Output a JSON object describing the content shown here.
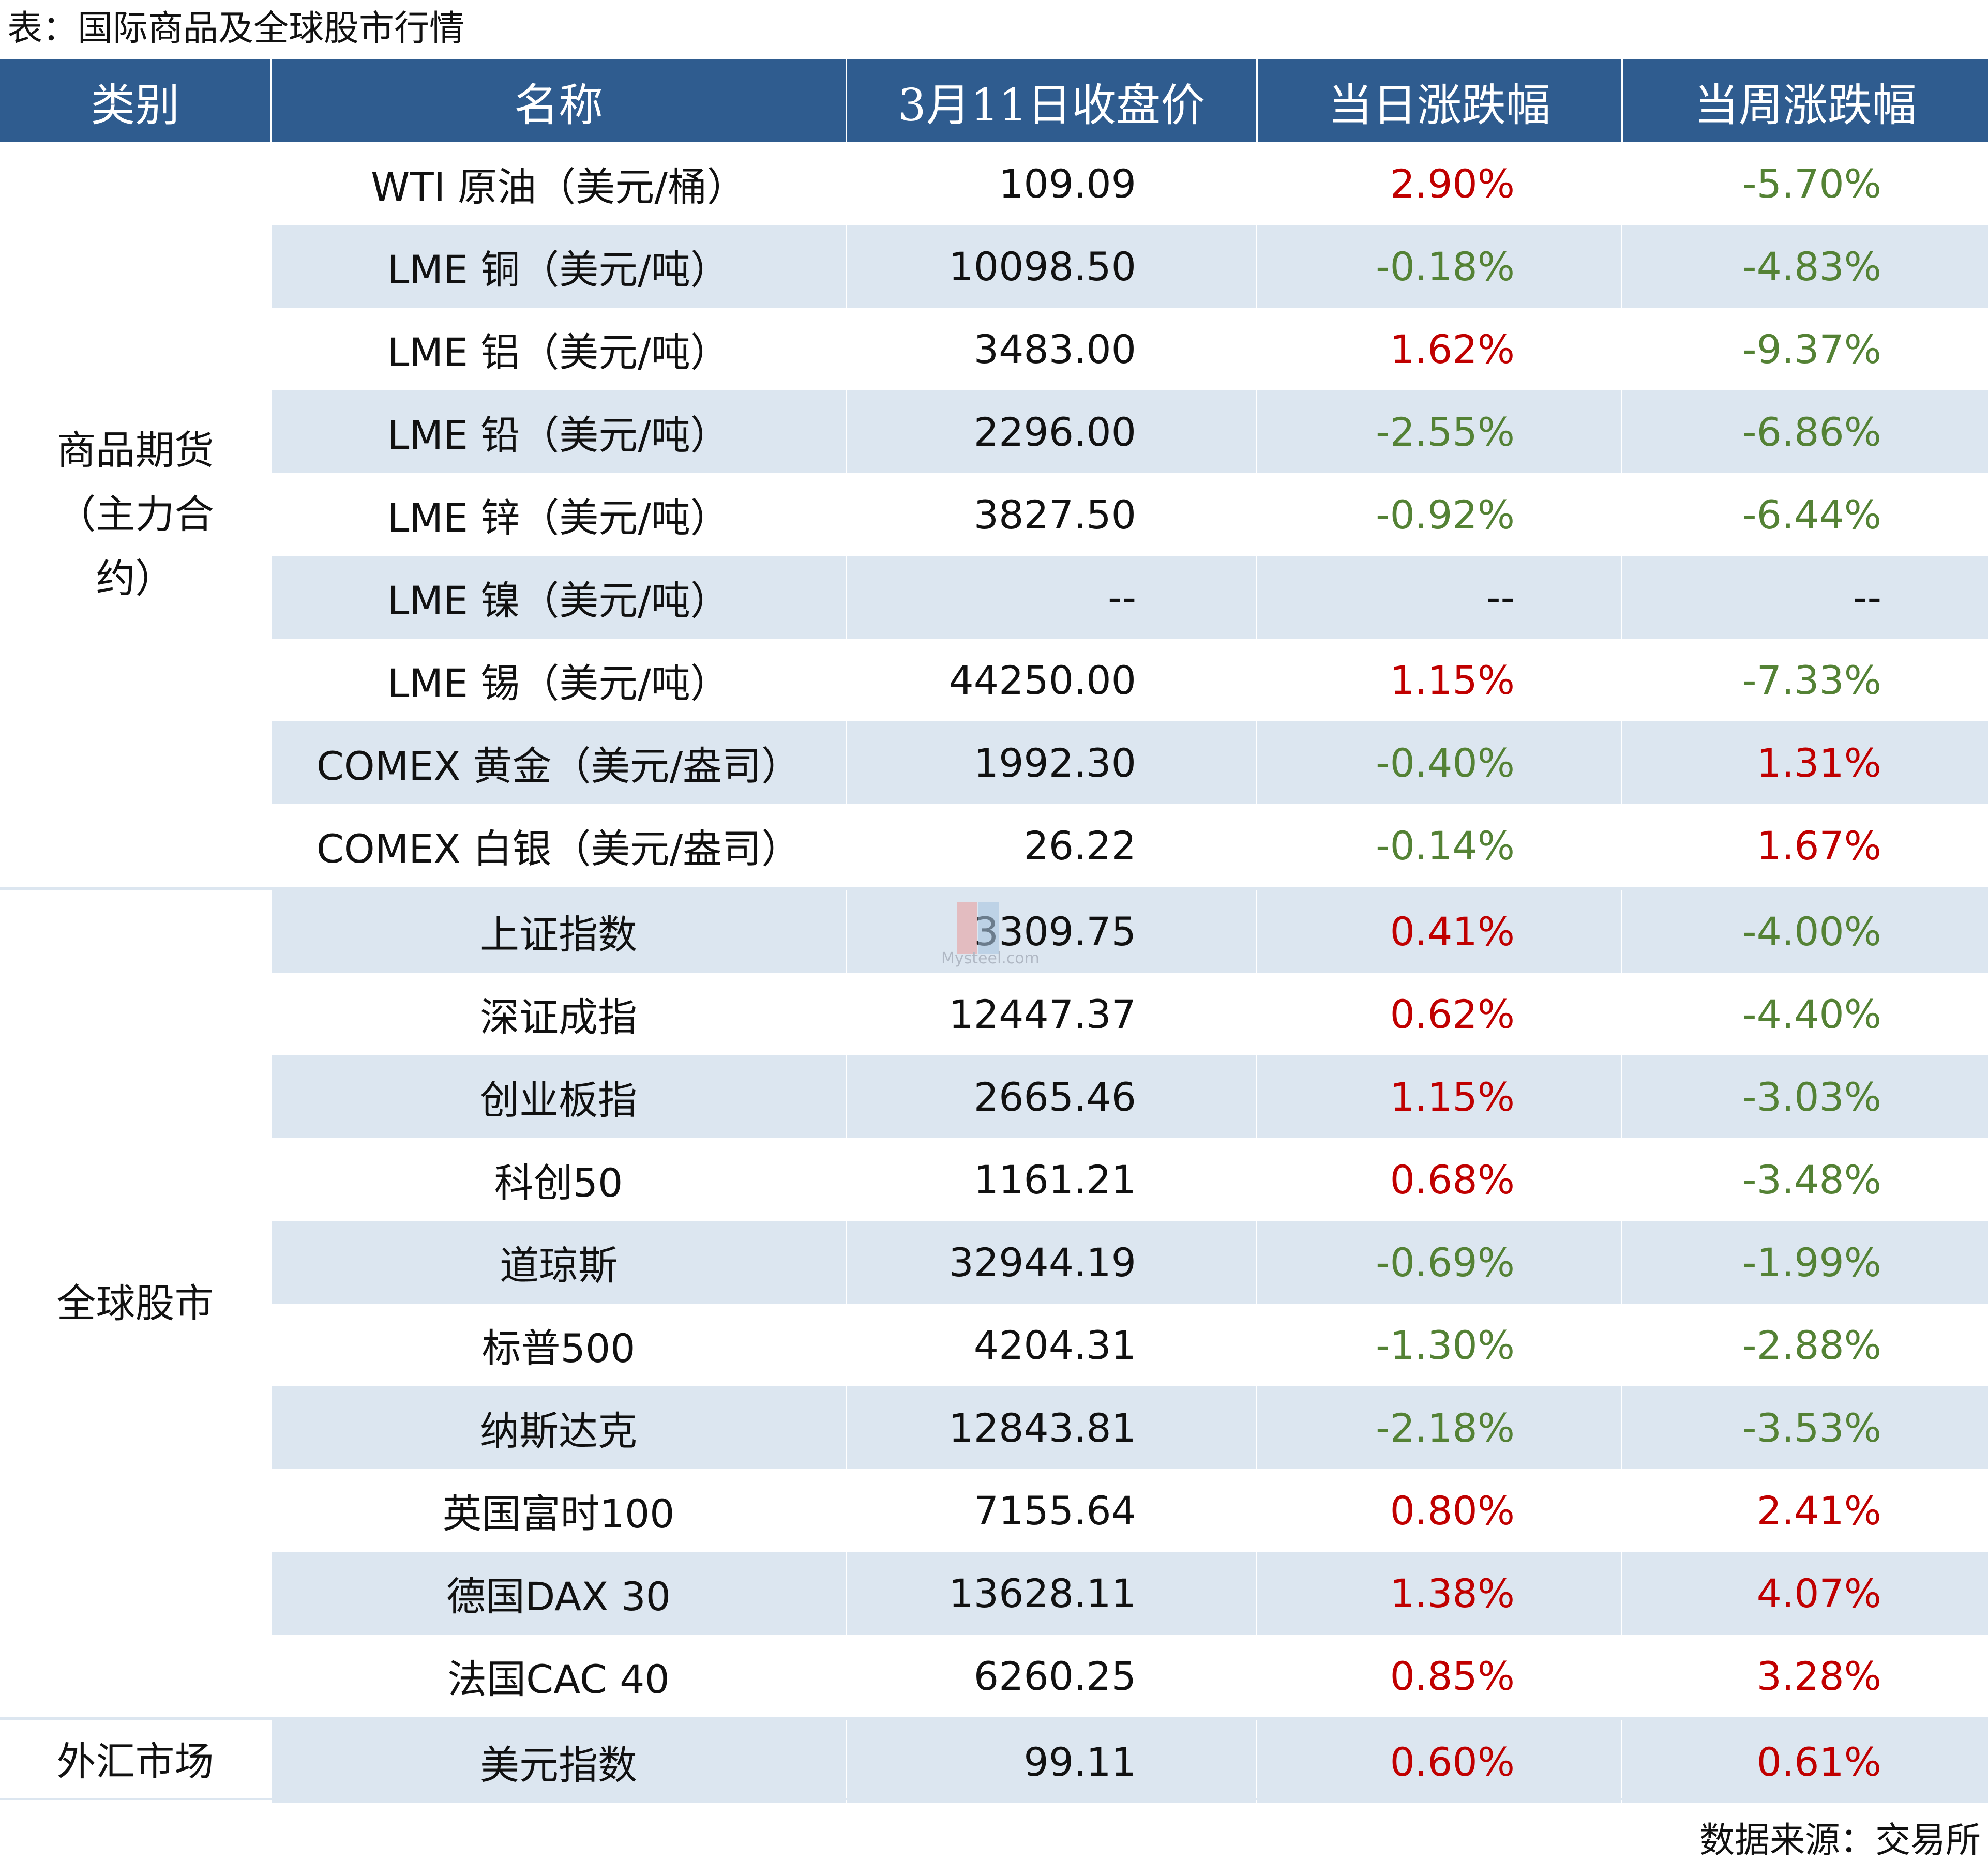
{
  "caption": "表：国际商品及全球股市行情",
  "header": {
    "category": "类别",
    "name": "名称",
    "close": "3月11日收盘价",
    "daily_change": "当日涨跌幅",
    "weekly_change": "当周涨跌幅"
  },
  "groups": [
    {
      "category": "商品期货（主力合约）",
      "rows": [
        {
          "name": "WTI 原油（美元/桶）",
          "close": "109.09",
          "daily": "2.90%",
          "weekly": "-5.70%"
        },
        {
          "name": "LME 铜（美元/吨）",
          "close": "10098.50",
          "daily": "-0.18%",
          "weekly": "-4.83%"
        },
        {
          "name": "LME 铝（美元/吨）",
          "close": "3483.00",
          "daily": "1.62%",
          "weekly": "-9.37%"
        },
        {
          "name": "LME 铅（美元/吨）",
          "close": "2296.00",
          "daily": "-2.55%",
          "weekly": "-6.86%"
        },
        {
          "name": "LME 锌（美元/吨）",
          "close": "3827.50",
          "daily": "-0.92%",
          "weekly": "-6.44%"
        },
        {
          "name": "LME 镍（美元/吨）",
          "close": "--",
          "daily": "--",
          "weekly": "--"
        },
        {
          "name": "LME 锡（美元/吨）",
          "close": "44250.00",
          "daily": "1.15%",
          "weekly": "-7.33%"
        },
        {
          "name": "COMEX 黄金（美元/盎司）",
          "close": "1992.30",
          "daily": "-0.40%",
          "weekly": "1.31%"
        },
        {
          "name": "COMEX 白银（美元/盎司）",
          "close": "26.22",
          "daily": "-0.14%",
          "weekly": "1.67%"
        }
      ]
    },
    {
      "category": "全球股市",
      "rows": [
        {
          "name": "上证指数",
          "close": "3309.75",
          "daily": "0.41%",
          "weekly": "-4.00%"
        },
        {
          "name": "深证成指",
          "close": "12447.37",
          "daily": "0.62%",
          "weekly": "-4.40%"
        },
        {
          "name": "创业板指",
          "close": "2665.46",
          "daily": "1.15%",
          "weekly": "-3.03%"
        },
        {
          "name": "科创50",
          "close": "1161.21",
          "daily": "0.68%",
          "weekly": "-3.48%"
        },
        {
          "name": "道琼斯",
          "close": "32944.19",
          "daily": "-0.69%",
          "weekly": "-1.99%"
        },
        {
          "name": "标普500",
          "close": "4204.31",
          "daily": "-1.30%",
          "weekly": "-2.88%"
        },
        {
          "name": "纳斯达克",
          "close": "12843.81",
          "daily": "-2.18%",
          "weekly": "-3.53%"
        },
        {
          "name": "英国富时100",
          "close": "7155.64",
          "daily": "0.80%",
          "weekly": "2.41%"
        },
        {
          "name": "德国DAX 30",
          "close": "13628.11",
          "daily": "1.38%",
          "weekly": "4.07%"
        },
        {
          "name": "法国CAC 40",
          "close": "6260.25",
          "daily": "0.85%",
          "weekly": "3.28%"
        }
      ]
    },
    {
      "category": "外汇市场",
      "rows": [
        {
          "name": "美元指数",
          "close": "99.11",
          "daily": "0.60%",
          "weekly": "0.61%"
        }
      ]
    }
  ],
  "colors": {
    "header_bg": "#2f5c8f",
    "row_shade": "#dce6f0",
    "positive": "#c00000",
    "negative": "#548235"
  },
  "watermark": "Mysteel.com",
  "source": "数据来源：交易所"
}
